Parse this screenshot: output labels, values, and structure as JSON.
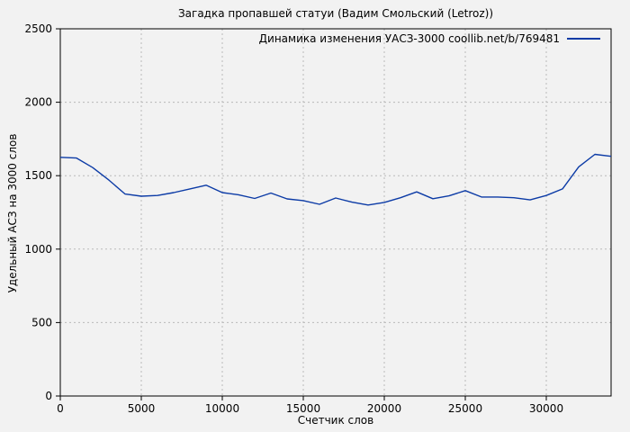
{
  "window": {
    "background_color": "#f2f2f2"
  },
  "chart_data": {
    "type": "line",
    "title": "Загадка пропавшей статуи (Вадим Смольский (Letroz))",
    "xlabel": "Счетчик слов",
    "ylabel": "Удельный АСЗ на 3000 слов",
    "xlim": [
      0,
      34000
    ],
    "ylim": [
      0,
      2500
    ],
    "x_ticks": [
      0,
      5000,
      10000,
      15000,
      20000,
      25000,
      30000
    ],
    "y_ticks": [
      0,
      500,
      1000,
      1500,
      2000,
      2500
    ],
    "grid": true,
    "grid_style": "dashed",
    "grid_color": "#b9b9b9",
    "axis_color": "#000000",
    "background_color": "#f2f2f2",
    "legend_position": "top-right-inside",
    "series": [
      {
        "name": "Динамика изменения УАСЗ-3000 coollib.net/b/769481",
        "color": "#0c3ba6",
        "x": [
          0,
          1000,
          2000,
          3000,
          4000,
          5000,
          6000,
          7000,
          8000,
          9000,
          10000,
          11000,
          12000,
          13000,
          14000,
          15000,
          16000,
          17000,
          18000,
          19000,
          20000,
          21000,
          22000,
          23000,
          24000,
          25000,
          26000,
          27000,
          28000,
          29000,
          30000,
          31000,
          32000,
          33000,
          34000
        ],
        "y": [
          1625,
          1620,
          1555,
          1470,
          1375,
          1360,
          1365,
          1385,
          1410,
          1435,
          1385,
          1370,
          1345,
          1382,
          1342,
          1330,
          1305,
          1348,
          1320,
          1300,
          1318,
          1350,
          1390,
          1343,
          1363,
          1398,
          1355,
          1355,
          1350,
          1335,
          1365,
          1410,
          1560,
          1645,
          1632
        ]
      }
    ]
  }
}
